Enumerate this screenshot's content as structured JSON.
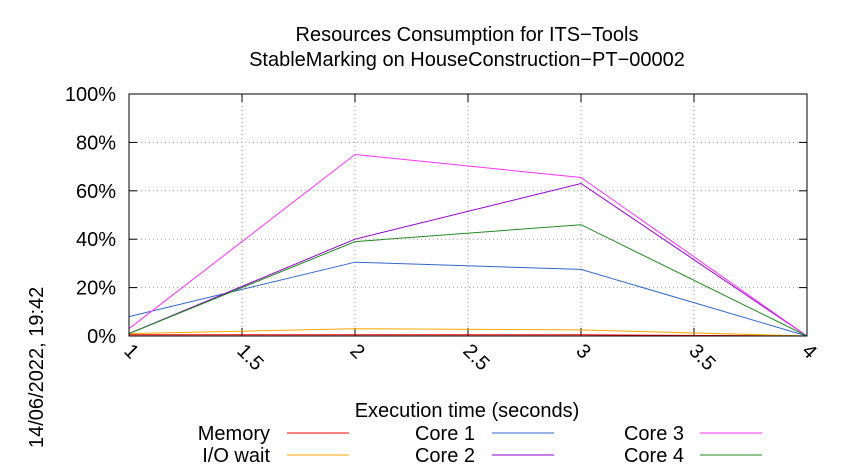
{
  "timestamp": "14/06/2022, 19:42",
  "chart_data": {
    "type": "line",
    "title": "Resources Consumption for ITS−Tools",
    "subtitle": "StableMarking on HouseConstruction−PT−00002",
    "xlabel": "Execution time (seconds)",
    "ylabel": "",
    "xlim": [
      1,
      4
    ],
    "ylim": [
      0,
      100
    ],
    "x_ticks": [
      "1",
      "1.5",
      "2",
      "2.5",
      "3",
      "3.5",
      "4"
    ],
    "y_ticks": [
      "0%",
      "20%",
      "40%",
      "60%",
      "80%",
      "100%"
    ],
    "grid": true,
    "legend_position": "bottom",
    "x": [
      1,
      2,
      3,
      4
    ],
    "series": [
      {
        "name": "Memory",
        "color": "#ff0000",
        "values": [
          0.5,
          0.5,
          0.5,
          0
        ]
      },
      {
        "name": "I/O wait",
        "color": "#ffa500",
        "values": [
          1,
          3,
          2.5,
          0
        ]
      },
      {
        "name": "Core 1",
        "color": "#3366cc",
        "values": [
          8,
          30.5,
          27.5,
          0
        ]
      },
      {
        "name": "Core 2",
        "color": "#9400d3",
        "values": [
          1,
          40,
          63,
          0
        ]
      },
      {
        "name": "Core 3",
        "color": "#ff33ff",
        "values": [
          3,
          75,
          65.5,
          0
        ]
      },
      {
        "name": "Core 4",
        "color": "#228b22",
        "values": [
          1,
          39,
          46,
          0
        ]
      }
    ]
  }
}
